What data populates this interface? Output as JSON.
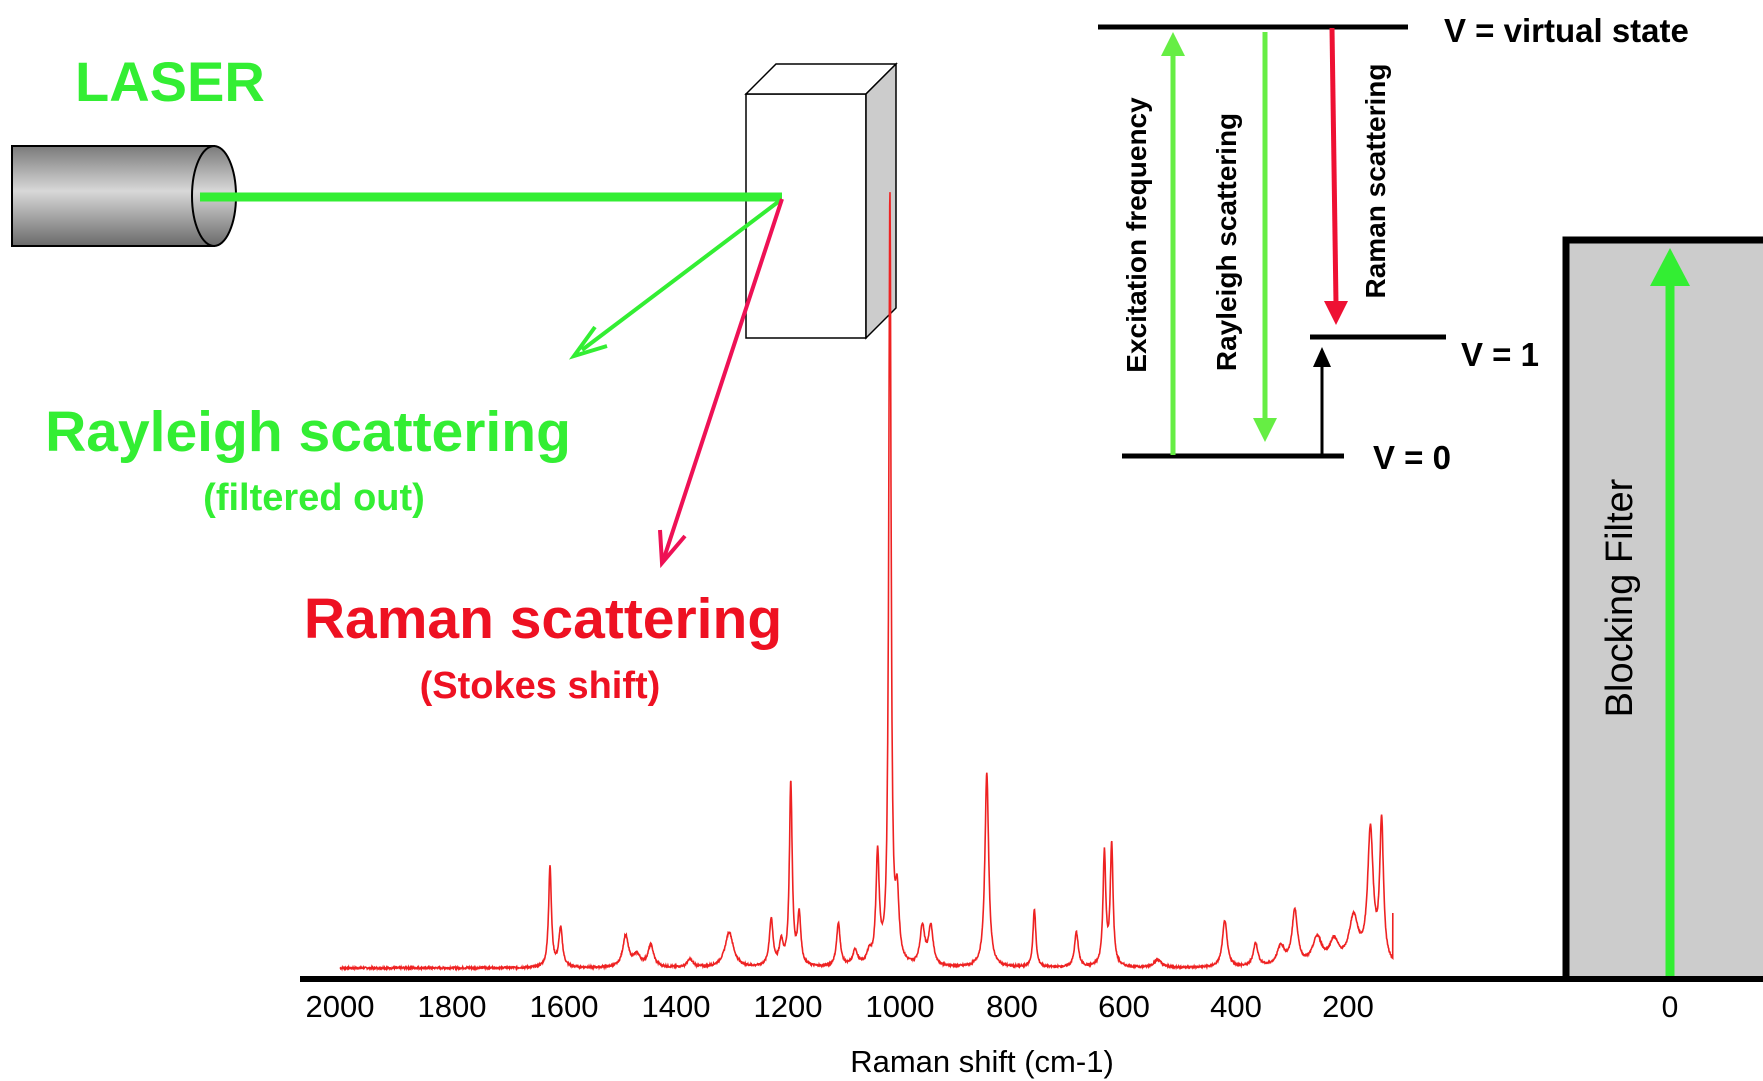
{
  "colors": {
    "green": "#33ee33",
    "green_arrow": "#66ee44",
    "red": "#ee1122",
    "raman_arrow": "#ee1155",
    "spectrum": "#ee2222",
    "filter_fill": "#cccccc",
    "black": "#000000"
  },
  "setup": {
    "laser_label": "LASER",
    "rayleigh_label": "Rayleigh scattering",
    "rayleigh_sub": "(filtered out)",
    "raman_label": "Raman scattering",
    "raman_sub": "(Stokes shift)"
  },
  "energy_diagram": {
    "virtual_label": "V = virtual state",
    "v1_label": "V = 1",
    "v0_label": "V = 0",
    "excitation_label": "Excitation frequency",
    "rayleigh_label": "Rayleigh scattering",
    "raman_label": "Raman scattering"
  },
  "filter": {
    "label": "Blocking Filter",
    "zero_tick": "0"
  },
  "chart_data": {
    "type": "line",
    "title": "",
    "xlabel": "Raman shift (cm-1)",
    "ylabel": "",
    "xlim": [
      2000,
      120
    ],
    "x_reversed": true,
    "x_ticks": [
      2000,
      1800,
      1600,
      1400,
      1200,
      1000,
      800,
      600,
      400,
      200
    ],
    "y_axis_shown": false,
    "ylim": [
      0,
      100
    ],
    "baseline": 1.0,
    "peaks": [
      {
        "x": 1625,
        "height": 13.0,
        "width": 3
      },
      {
        "x": 1606,
        "height": 5.0,
        "width": 4
      },
      {
        "x": 1490,
        "height": 4.0,
        "width": 6
      },
      {
        "x": 1470,
        "height": 1.5,
        "width": 8
      },
      {
        "x": 1445,
        "height": 2.8,
        "width": 6
      },
      {
        "x": 1375,
        "height": 1.0,
        "width": 6
      },
      {
        "x": 1305,
        "height": 4.5,
        "width": 9
      },
      {
        "x": 1230,
        "height": 6.0,
        "width": 4
      },
      {
        "x": 1212,
        "height": 3.0,
        "width": 4
      },
      {
        "x": 1195,
        "height": 23.5,
        "width": 3
      },
      {
        "x": 1180,
        "height": 6.5,
        "width": 3.5
      },
      {
        "x": 1110,
        "height": 5.5,
        "width": 4
      },
      {
        "x": 1080,
        "height": 2.0,
        "width": 5
      },
      {
        "x": 1055,
        "height": 1.5,
        "width": 5
      },
      {
        "x": 1040,
        "height": 14.0,
        "width": 3.5
      },
      {
        "x": 1018,
        "height": 99.0,
        "width": 2.5
      },
      {
        "x": 1005,
        "height": 8.0,
        "width": 4
      },
      {
        "x": 960,
        "height": 5.0,
        "width": 5
      },
      {
        "x": 945,
        "height": 5.0,
        "width": 5
      },
      {
        "x": 845,
        "height": 25.0,
        "width": 4
      },
      {
        "x": 760,
        "height": 7.5,
        "width": 3
      },
      {
        "x": 685,
        "height": 4.5,
        "width": 4
      },
      {
        "x": 635,
        "height": 14.5,
        "width": 3
      },
      {
        "x": 622,
        "height": 15.5,
        "width": 3
      },
      {
        "x": 540,
        "height": 1.0,
        "width": 8
      },
      {
        "x": 420,
        "height": 6.0,
        "width": 5
      },
      {
        "x": 365,
        "height": 3.0,
        "width": 5
      },
      {
        "x": 320,
        "height": 2.5,
        "width": 8
      },
      {
        "x": 295,
        "height": 7.0,
        "width": 6
      },
      {
        "x": 255,
        "height": 3.5,
        "width": 10
      },
      {
        "x": 225,
        "height": 3.0,
        "width": 10
      },
      {
        "x": 190,
        "height": 6.0,
        "width": 10
      },
      {
        "x": 160,
        "height": 17.0,
        "width": 6
      },
      {
        "x": 140,
        "height": 18.0,
        "width": 4
      }
    ]
  }
}
